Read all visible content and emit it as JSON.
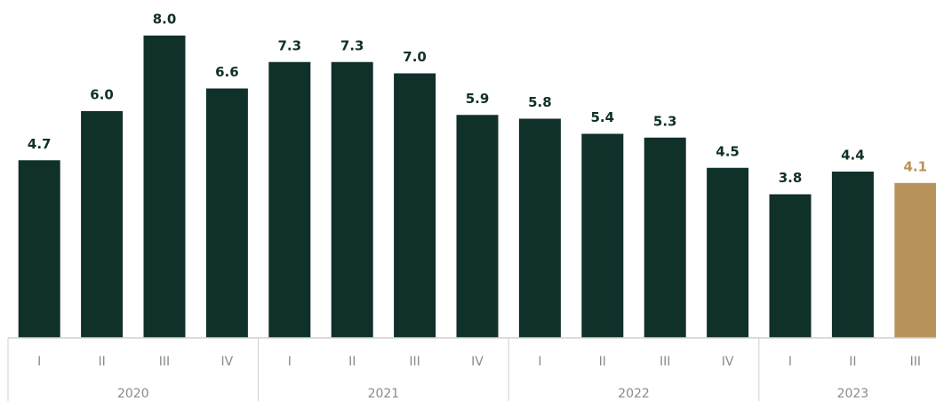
{
  "chart_data": {
    "type": "bar",
    "categories": [
      "I",
      "II",
      "III",
      "IV",
      "I",
      "II",
      "III",
      "IV",
      "I",
      "II",
      "III",
      "IV",
      "I",
      "II",
      "III"
    ],
    "groups": [
      {
        "name": "2020",
        "count": 4
      },
      {
        "name": "2021",
        "count": 4
      },
      {
        "name": "2022",
        "count": 4
      },
      {
        "name": "2023",
        "count": 3
      }
    ],
    "values": [
      4.7,
      6.0,
      8.0,
      6.6,
      7.3,
      7.3,
      7.0,
      5.9,
      5.8,
      5.4,
      5.3,
      4.5,
      3.8,
      4.4,
      4.1
    ],
    "value_labels": [
      "4.7",
      "6.0",
      "8.0",
      "6.6",
      "7.3",
      "7.3",
      "7.0",
      "5.9",
      "5.8",
      "5.4",
      "5.3",
      "4.5",
      "3.8",
      "4.4",
      "4.1"
    ],
    "colors": [
      "#10302a",
      "#10302a",
      "#10302a",
      "#10302a",
      "#10302a",
      "#10302a",
      "#10302a",
      "#10302a",
      "#10302a",
      "#10302a",
      "#10302a",
      "#10302a",
      "#10302a",
      "#10302a",
      "#b8935a"
    ],
    "ylim": [
      0,
      8
    ]
  }
}
